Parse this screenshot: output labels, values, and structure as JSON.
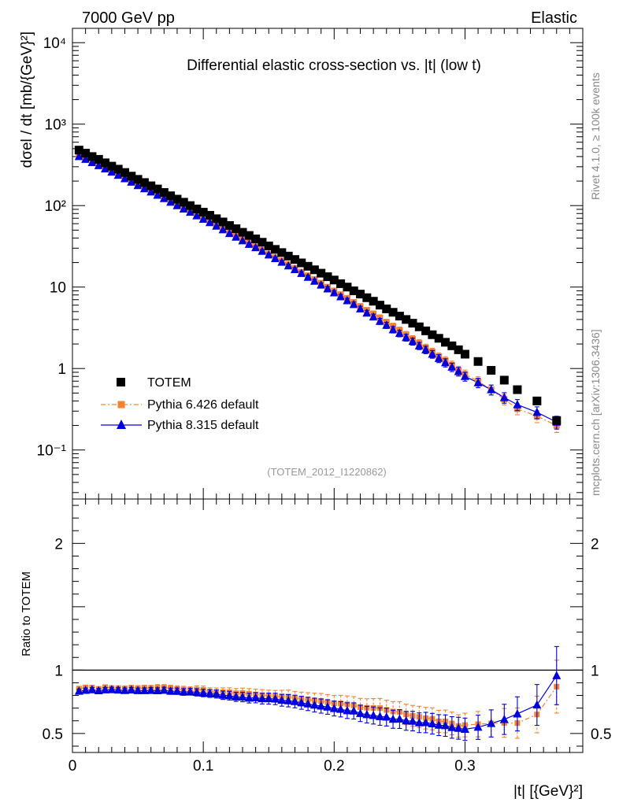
{
  "header": {
    "left": "7000 GeV pp",
    "right": "Elastic"
  },
  "side_labels": {
    "rivet": "Rivet 4.1.0, ≥ 100k events",
    "mcplots": "mcplots.cern.ch [arXiv:1306.3436]"
  },
  "chart_data": {
    "type": "scatter",
    "title": "Differential elastic cross-section vs. |t| (low t)",
    "analysis": "(TOTEM_2012_I1220862)",
    "xlabel": "|t| [{GeV}²]",
    "ylabel_main": "dσel / dt [mb/{GeV}²]",
    "ylabel_ratio": "Ratio to TOTEM",
    "xlim": [
      0,
      0.39
    ],
    "ylim_main": [
      0.025,
      15000
    ],
    "ylim_ratio": [
      0.35,
      2.35
    ],
    "x_ticks": [
      "0",
      "0.1",
      "0.2",
      "0.3"
    ],
    "y_ticks_main": [
      "10⁻¹",
      "1",
      "10",
      "10²",
      "10³",
      "10⁴"
    ],
    "y_ticks_ratio": [
      "0.5",
      "1",
      "2"
    ],
    "legend": [
      "TOTEM",
      "Pythia 6.426 default",
      "Pythia 8.315 default"
    ],
    "colors": {
      "totem": "#000000",
      "p6": "#f58231",
      "p8": "#0000dd"
    },
    "x": [
      0.005,
      0.01,
      0.015,
      0.02,
      0.025,
      0.03,
      0.035,
      0.04,
      0.045,
      0.05,
      0.055,
      0.06,
      0.065,
      0.07,
      0.075,
      0.08,
      0.085,
      0.09,
      0.095,
      0.1,
      0.105,
      0.11,
      0.115,
      0.12,
      0.125,
      0.13,
      0.135,
      0.14,
      0.145,
      0.15,
      0.155,
      0.16,
      0.165,
      0.17,
      0.175,
      0.18,
      0.185,
      0.19,
      0.195,
      0.2,
      0.205,
      0.21,
      0.215,
      0.22,
      0.225,
      0.23,
      0.235,
      0.24,
      0.245,
      0.25,
      0.255,
      0.26,
      0.265,
      0.27,
      0.275,
      0.28,
      0.285,
      0.29,
      0.295,
      0.3,
      0.31,
      0.32,
      0.33,
      0.34,
      0.355,
      0.37
    ],
    "series": [
      {
        "name": "TOTEM",
        "values": [
          480,
          440,
          400,
          370,
          335,
          305,
          280,
          255,
          230,
          210,
          192,
          175,
          160,
          145,
          132,
          120,
          110,
          100,
          91,
          83,
          76,
          69,
          63,
          57,
          52,
          47,
          43,
          39,
          35.5,
          32,
          29,
          26.5,
          24,
          21.8,
          19.8,
          18,
          16.3,
          14.8,
          13.4,
          12.2,
          11,
          10,
          9,
          8.2,
          7.4,
          6.7,
          6,
          5.4,
          4.9,
          4.4,
          4,
          3.6,
          3.25,
          2.9,
          2.6,
          2.35,
          2.1,
          1.9,
          1.7,
          1.5,
          1.22,
          0.95,
          0.72,
          0.55,
          0.4,
          0.23
        ]
      },
      {
        "name": "Pythia 6.426 default",
        "values": [
          410,
          380,
          345,
          315,
          290,
          262,
          240,
          218,
          198,
          180,
          165,
          150,
          138,
          125,
          113,
          102,
          93,
          84,
          77,
          70,
          63,
          57,
          52,
          47,
          42.5,
          38.5,
          35,
          31.5,
          28.5,
          25.5,
          23,
          21,
          19,
          17,
          15.3,
          13.8,
          12.4,
          11.2,
          10,
          9,
          8.1,
          7.3,
          6.5,
          5.8,
          5.2,
          4.7,
          4.2,
          3.7,
          3.3,
          2.95,
          2.6,
          2.3,
          2.05,
          1.8,
          1.6,
          1.4,
          1.25,
          1.1,
          0.95,
          0.85,
          0.7,
          0.55,
          0.42,
          0.32,
          0.26,
          0.2
        ]
      },
      {
        "name": "Pythia 8.315 default",
        "values": [
          400,
          370,
          338,
          310,
          283,
          258,
          236,
          214,
          194,
          176,
          161,
          147,
          134,
          122,
          110,
          100,
          91,
          83,
          75,
          68,
          62,
          56,
          50.5,
          45.5,
          41,
          37,
          33.5,
          30.5,
          27.5,
          24.8,
          22.4,
          20.2,
          18.2,
          16.4,
          14.7,
          13.2,
          11.8,
          10.6,
          9.5,
          8.5,
          7.6,
          6.8,
          6.1,
          5.4,
          4.8,
          4.3,
          3.8,
          3.4,
          3,
          2.7,
          2.4,
          2.15,
          1.9,
          1.7,
          1.5,
          1.33,
          1.18,
          1.04,
          0.92,
          0.8,
          0.67,
          0.55,
          0.44,
          0.36,
          0.29,
          0.22
        ]
      }
    ]
  }
}
